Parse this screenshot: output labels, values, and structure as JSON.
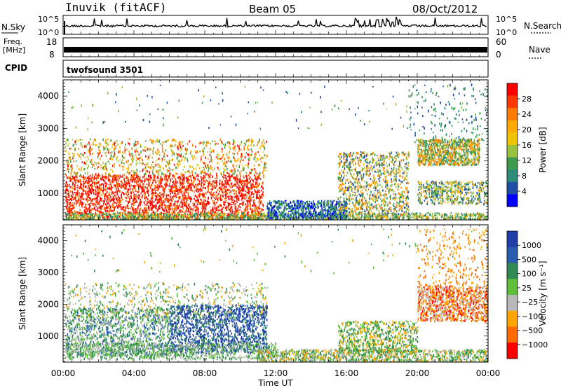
{
  "header": {
    "station": "Inuvik (fitACF)",
    "beam": "Beam 05",
    "date": "08/Oct/2012"
  },
  "noise_panel": {
    "left_label": "N.Sky",
    "right_label": "N.Search",
    "left_ticks": [
      "10^5",
      "10^0"
    ],
    "right_ticks": [
      "10^5",
      "10^0"
    ]
  },
  "freq_panel": {
    "left_label_1": "Freq.",
    "left_label_2": "[MHz]",
    "right_label": "Nave",
    "left_ticks": [
      "18",
      "8"
    ],
    "right_ticks": [
      "60",
      "0"
    ]
  },
  "cpid_panel": {
    "label": "CPID",
    "mode": "twofsound 3501"
  },
  "power_panel": {
    "ylabel": "Slant Range [km]",
    "yticks": [
      "4000",
      "3000",
      "2000",
      "1000"
    ],
    "colorbar_title": "Power [dB]",
    "colorbar_ticks": [
      "28",
      "24",
      "20",
      "16",
      "12",
      "8",
      "4"
    ],
    "colors": [
      "#ff0000",
      "#ff3a00",
      "#ff7a00",
      "#ffaa00",
      "#f2c300",
      "#9ac040",
      "#3c9b4d",
      "#2e8b7a",
      "#1f4fa6",
      "#0000ff"
    ]
  },
  "velocity_panel": {
    "ylabel": "Slant Range [km]",
    "yticks": [
      "4000",
      "3000",
      "2000",
      "1000"
    ],
    "colorbar_title": "Velocity [m s⁻¹]",
    "colorbar_ticks": [
      "1000",
      "500",
      "100",
      "25",
      "−25",
      "−100",
      "−500",
      "−1000"
    ],
    "colors": [
      "#1f3ea8",
      "#2a5db0",
      "#2f8a54",
      "#5fbf3a",
      "#b8b8b8",
      "#ffa500",
      "#ff6a00",
      "#ff0000"
    ]
  },
  "xaxis": {
    "ticks": [
      "00:00",
      "04:00",
      "08:00",
      "12:00",
      "16:00",
      "20:00",
      "00:00"
    ],
    "label": "Time UT"
  }
}
